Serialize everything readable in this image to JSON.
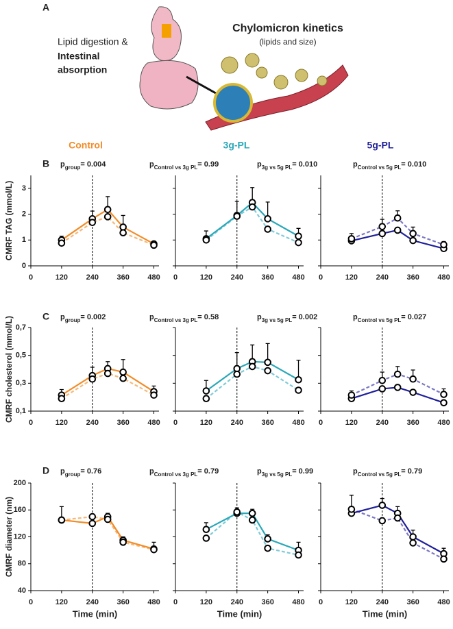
{
  "panel_a": {
    "label": "A",
    "left_lines": [
      "Lipid digestion &",
      "Intestinal",
      "absorption"
    ],
    "title": "Chylomicron kinetics",
    "subtitle": "(lipids and size)"
  },
  "columns": [
    {
      "name": "Control",
      "color": "#f28c28"
    },
    {
      "name": "3g-PL",
      "color": "#2aa8b8"
    },
    {
      "name": "5g-PL",
      "color": "#1f1f9a"
    }
  ],
  "rows": [
    {
      "label": "B",
      "annotations": [
        {
          "p": "p",
          "sub": "group",
          "rest": "= 0.004"
        },
        {
          "p": "p",
          "sub": "Control vs 3g PL",
          "rest": "= 0.99"
        },
        {
          "p": "p",
          "sub": "3g vs 5g PL",
          "rest": "= 0.010"
        },
        {
          "p": "p",
          "sub": "Control vs 5g PL",
          "rest": "= 0.010"
        }
      ]
    },
    {
      "label": "C",
      "annotations": [
        {
          "p": "p",
          "sub": "group",
          "rest": "= 0.002"
        },
        {
          "p": "p",
          "sub": "Control vs 3g PL",
          "rest": "= 0.58"
        },
        {
          "p": "p",
          "sub": "3g vs 5g PL",
          "rest": "= 0.002"
        },
        {
          "p": "p",
          "sub": "Control vs 5g PL",
          "rest": "= 0.027"
        }
      ]
    },
    {
      "label": "D",
      "annotations": [
        {
          "p": "p",
          "sub": "group",
          "rest": "= 0.76"
        },
        {
          "p": "p",
          "sub": "Control vs 3g PL",
          "rest": "= 0.79"
        },
        {
          "p": "p",
          "sub": "3g vs 5g PL",
          "rest": "= 0.99"
        },
        {
          "p": "p",
          "sub": "Control vs 5g PL",
          "rest": "= 0.79"
        }
      ]
    }
  ],
  "chart_data": [
    {
      "type": "line",
      "ylabel": "CMRF TAG (mmol/L)",
      "x": [
        120,
        240,
        300,
        360,
        480
      ],
      "xlim": [
        0,
        500
      ],
      "xticks": [
        0,
        120,
        240,
        360,
        480
      ],
      "ylim": [
        0,
        3.5
      ],
      "yticks": [
        0,
        1,
        2,
        3
      ],
      "vline": 240,
      "series": [
        {
          "color": "#f28c28",
          "dashed": false,
          "values": [
            1.0,
            1.82,
            2.18,
            1.5,
            0.85
          ],
          "errors": [
            0.15,
            0.3,
            0.5,
            0.45,
            0.1
          ]
        },
        {
          "color": "#f5b97a",
          "dashed": true,
          "values": [
            0.88,
            1.68,
            1.9,
            1.28,
            0.8
          ]
        }
      ]
    },
    {
      "type": "line",
      "x": [
        120,
        240,
        300,
        360,
        480
      ],
      "xlim": [
        0,
        500
      ],
      "xticks": [
        0,
        120,
        240,
        360,
        480
      ],
      "ylim": [
        0,
        3.5
      ],
      "yticks": [
        0,
        1,
        2,
        3
      ],
      "vline": 240,
      "series": [
        {
          "color": "#2aa8b8",
          "dashed": false,
          "values": [
            1.05,
            1.95,
            2.45,
            1.82,
            1.15
          ],
          "errors": [
            0.3,
            0.55,
            0.58,
            0.65,
            0.3
          ]
        },
        {
          "color": "#7fcbd8",
          "dashed": true,
          "values": [
            1.0,
            1.92,
            2.28,
            1.42,
            0.9
          ]
        }
      ]
    },
    {
      "type": "line",
      "x": [
        120,
        240,
        300,
        360,
        480
      ],
      "xlim": [
        0,
        500
      ],
      "xticks": [
        0,
        120,
        240,
        360,
        480
      ],
      "ylim": [
        0,
        3.5
      ],
      "yticks": [
        0,
        1,
        2,
        3
      ],
      "vline": 240,
      "series": [
        {
          "color": "#1f1f9a",
          "dashed": false,
          "values": [
            0.97,
            1.25,
            1.38,
            0.98,
            0.67
          ]
        },
        {
          "color": "#7b78c4",
          "dashed": true,
          "values": [
            1.05,
            1.52,
            1.85,
            1.25,
            0.82
          ],
          "errors": [
            0.2,
            0.28,
            0.28,
            0.25,
            0.12
          ]
        }
      ]
    },
    {
      "type": "line",
      "ylabel": "CMRF cholesterol (mmol/L)",
      "x": [
        120,
        240,
        300,
        360,
        480
      ],
      "xlim": [
        0,
        500
      ],
      "xticks": [
        0,
        120,
        240,
        360,
        480
      ],
      "ylim": [
        0.1,
        0.7
      ],
      "yticks": [
        {
          "value": 0.1,
          "label": "0,1"
        },
        {
          "value": 0.3,
          "label": "0,3"
        },
        {
          "value": 0.5,
          "label": "0,5"
        },
        {
          "value": 0.7,
          "label": "0,7"
        }
      ],
      "vline": 240,
      "series": [
        {
          "color": "#f28c28",
          "dashed": false,
          "values": [
            0.215,
            0.355,
            0.405,
            0.38,
            0.24
          ],
          "errors": [
            0.04,
            0.06,
            0.05,
            0.09,
            0.04
          ]
        },
        {
          "color": "#f5b97a",
          "dashed": true,
          "values": [
            0.19,
            0.33,
            0.37,
            0.335,
            0.215
          ]
        }
      ]
    },
    {
      "type": "line",
      "x": [
        120,
        240,
        300,
        360,
        480
      ],
      "xlim": [
        0,
        500
      ],
      "xticks": [
        0,
        120,
        240,
        360,
        480
      ],
      "ylim": [
        0.1,
        0.7
      ],
      "yticks": [
        {
          "value": 0.1,
          "label": "0,1"
        },
        {
          "value": 0.3,
          "label": "0,3"
        },
        {
          "value": 0.5,
          "label": "0,5"
        },
        {
          "value": 0.7,
          "label": "0,7"
        }
      ],
      "vline": 240,
      "series": [
        {
          "color": "#2aa8b8",
          "dashed": false,
          "values": [
            0.245,
            0.405,
            0.455,
            0.45,
            0.325
          ],
          "errors": [
            0.075,
            0.115,
            0.12,
            0.135,
            0.14
          ]
        },
        {
          "color": "#7fcbd8",
          "dashed": true,
          "values": [
            0.19,
            0.365,
            0.42,
            0.39,
            0.25
          ]
        }
      ]
    },
    {
      "type": "line",
      "x": [
        120,
        240,
        300,
        360,
        480
      ],
      "xlim": [
        0,
        500
      ],
      "xticks": [
        0,
        120,
        240,
        360,
        480
      ],
      "ylim": [
        0.1,
        0.7
      ],
      "yticks": [
        {
          "value": 0.1,
          "label": "0,1"
        },
        {
          "value": 0.3,
          "label": "0,3"
        },
        {
          "value": 0.5,
          "label": "0,5"
        },
        {
          "value": 0.7,
          "label": "0,7"
        }
      ],
      "vline": 240,
      "series": [
        {
          "color": "#1f1f9a",
          "dashed": false,
          "values": [
            0.19,
            0.26,
            0.27,
            0.235,
            0.16
          ]
        },
        {
          "color": "#7b78c4",
          "dashed": true,
          "values": [
            0.215,
            0.32,
            0.365,
            0.33,
            0.22
          ],
          "errors": [
            0.03,
            0.06,
            0.055,
            0.065,
            0.04
          ]
        }
      ]
    },
    {
      "type": "line",
      "ylabel": "CMRF diameter (nm)",
      "xlabel": "Time (min)",
      "x": [
        120,
        240,
        300,
        360,
        480
      ],
      "xlim": [
        0,
        500
      ],
      "xticks": [
        0,
        120,
        240,
        360,
        480
      ],
      "ylim": [
        40,
        200
      ],
      "yticks": [
        40,
        80,
        120,
        160,
        200
      ],
      "vline": 240,
      "series": [
        {
          "color": "#f28c28",
          "dashed": false,
          "values": [
            145,
            140,
            150,
            115,
            102
          ],
          "errors": [
            20,
            12,
            5,
            5,
            10
          ]
        },
        {
          "color": "#f5b97a",
          "dashed": true,
          "values": [
            145,
            150,
            146,
            112,
            101
          ]
        }
      ]
    },
    {
      "type": "line",
      "xlabel": "Time (min)",
      "x": [
        120,
        240,
        300,
        360,
        480
      ],
      "xlim": [
        0,
        500
      ],
      "xticks": [
        0,
        120,
        240,
        360,
        480
      ],
      "ylim": [
        40,
        200
      ],
      "yticks": [
        40,
        80,
        120,
        160,
        200
      ],
      "vline": 240,
      "series": [
        {
          "color": "#2aa8b8",
          "dashed": false,
          "values": [
            131,
            155,
            155,
            117,
            100
          ],
          "errors": [
            10,
            8,
            6,
            6,
            12
          ]
        },
        {
          "color": "#7fcbd8",
          "dashed": true,
          "values": [
            118,
            157,
            145,
            103,
            93
          ]
        }
      ]
    },
    {
      "type": "line",
      "xlabel": "Time (min)",
      "x": [
        120,
        240,
        300,
        360,
        480
      ],
      "xlim": [
        0,
        500
      ],
      "xticks": [
        0,
        120,
        240,
        360,
        480
      ],
      "ylim": [
        40,
        200
      ],
      "yticks": [
        40,
        80,
        120,
        160,
        200
      ],
      "vline": 240,
      "series": [
        {
          "color": "#1f1f9a",
          "dashed": false,
          "values": [
            155,
            167,
            155,
            120,
            95
          ],
          "errors": [
            27,
            10,
            10,
            10,
            8
          ]
        },
        {
          "color": "#7b78c4",
          "dashed": true,
          "values": [
            161,
            144,
            148,
            111,
            87
          ]
        }
      ]
    }
  ]
}
